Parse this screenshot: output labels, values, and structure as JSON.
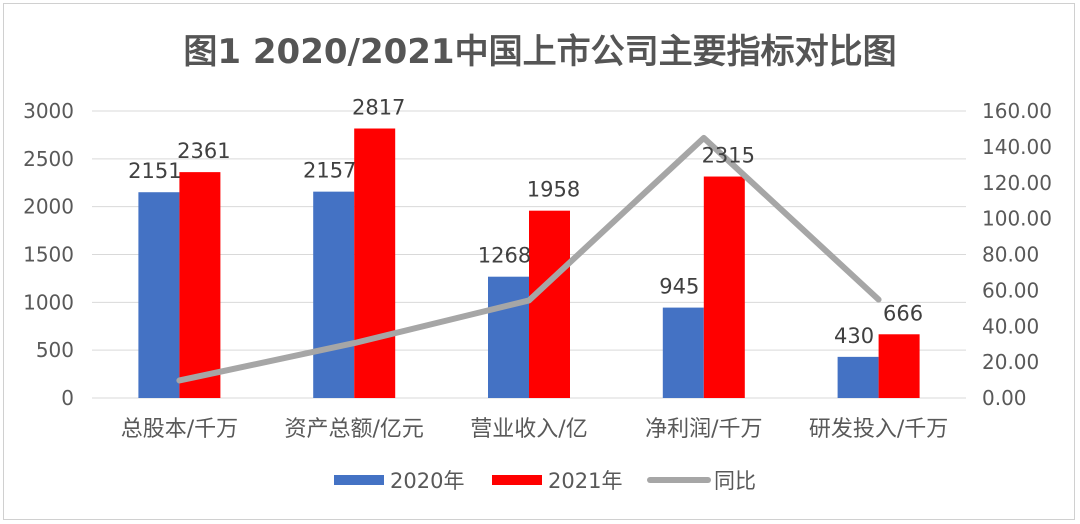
{
  "chart_data": {
    "type": "bar",
    "title": "图1  2020/2021中国上市公司主要指标对比图",
    "categories": [
      "总股本/千万",
      "资产总额/亿元",
      "营业收入/亿",
      "净利润/千万",
      "研发投入/千万"
    ],
    "series": [
      {
        "name": "2020年",
        "type": "bar",
        "axis": "left",
        "color": "#4472c4",
        "values": [
          2151,
          2157,
          1268,
          945,
          430
        ]
      },
      {
        "name": "2021年",
        "type": "bar",
        "axis": "left",
        "color": "#ff0000",
        "values": [
          2361,
          2817,
          1958,
          2315,
          666
        ]
      },
      {
        "name": "同比",
        "type": "line",
        "axis": "right",
        "color": "#a6a6a6",
        "values": [
          9.76,
          30.6,
          54.4,
          145.0,
          54.9
        ]
      }
    ],
    "ylim_left": [
      0,
      3000
    ],
    "yticks_left": [
      "0",
      "500",
      "1000",
      "1500",
      "2000",
      "2500",
      "3000"
    ],
    "ylim_right": [
      0,
      160
    ],
    "yticks_right": [
      "0.00",
      "20.00",
      "40.00",
      "60.00",
      "80.00",
      "100.00",
      "120.00",
      "140.00",
      "160.00"
    ],
    "grid": true,
    "legend_position": "bottom"
  }
}
